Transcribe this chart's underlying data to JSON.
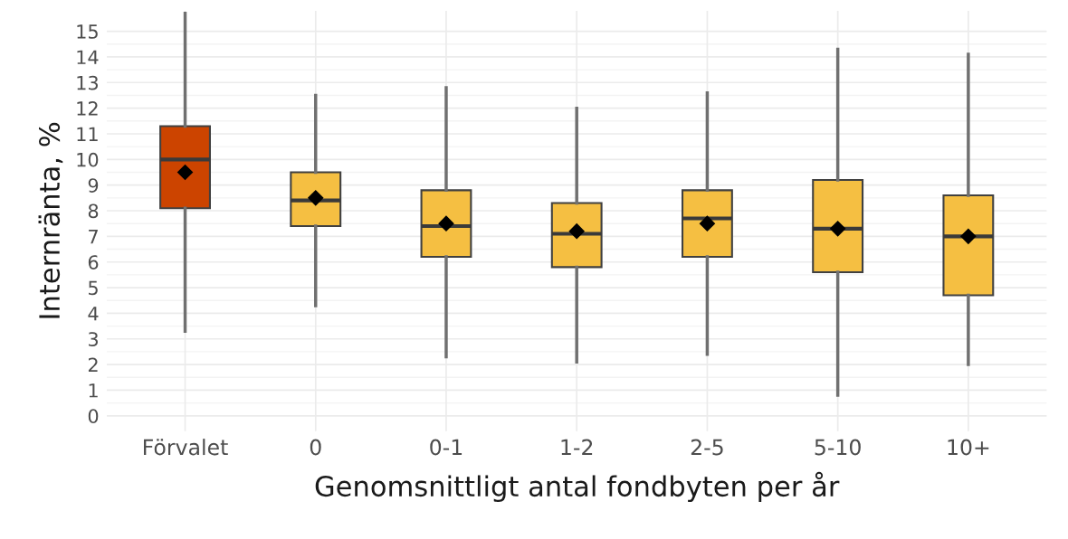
{
  "chart_data": {
    "type": "box",
    "xlabel": "Genomsnittligt antal fondbyten per år",
    "ylabel": "Internränta, %",
    "categories": [
      "Förvalet",
      "0",
      "0-1",
      "1-2",
      "2-5",
      "5-10",
      "10+"
    ],
    "colors": [
      "#cc4400",
      "#f5bf42",
      "#f5bf42",
      "#f5bf42",
      "#f5bf42",
      "#f5bf42",
      "#f5bf42"
    ],
    "boxes": [
      {
        "low": 3.3,
        "q1": 8.1,
        "median": 10.0,
        "q3": 11.3,
        "high": 15.7,
        "mean": 9.5
      },
      {
        "low": 4.3,
        "q1": 7.4,
        "median": 8.4,
        "q3": 9.5,
        "high": 12.5,
        "mean": 8.5
      },
      {
        "low": 2.3,
        "q1": 6.2,
        "median": 7.4,
        "q3": 8.8,
        "high": 12.8,
        "mean": 7.5
      },
      {
        "low": 2.1,
        "q1": 5.8,
        "median": 7.1,
        "q3": 8.3,
        "high": 12.0,
        "mean": 7.2
      },
      {
        "low": 2.4,
        "q1": 6.2,
        "median": 7.7,
        "q3": 8.8,
        "high": 12.6,
        "mean": 7.5
      },
      {
        "low": 0.8,
        "q1": 5.6,
        "median": 7.3,
        "q3": 9.2,
        "high": 14.3,
        "mean": 7.3
      },
      {
        "low": 2.0,
        "q1": 4.7,
        "median": 7.0,
        "q3": 8.6,
        "high": 14.1,
        "mean": 7.0
      }
    ],
    "ylim": [
      -0.6,
      15.8
    ],
    "yticks": [
      0,
      1,
      2,
      3,
      4,
      5,
      6,
      7,
      8,
      9,
      10,
      11,
      12,
      13,
      14,
      15
    ],
    "grid": true,
    "marker": "diamond"
  }
}
